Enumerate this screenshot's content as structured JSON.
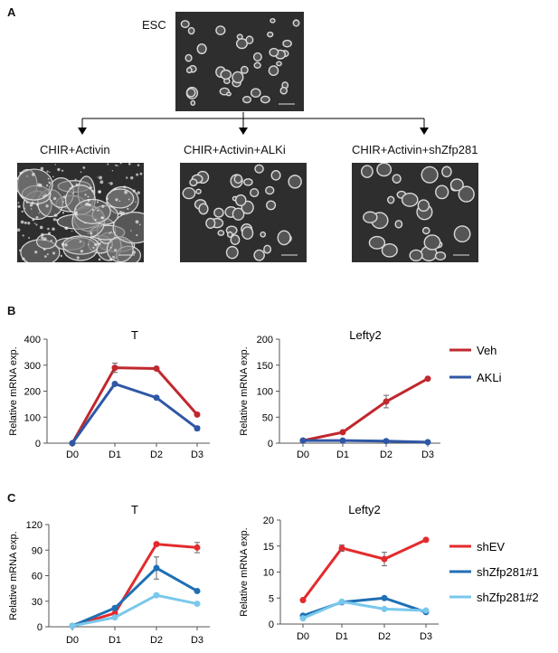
{
  "panels": {
    "a": "A",
    "b": "B",
    "c": "C"
  },
  "panel_a": {
    "top_label": "ESC",
    "conditions": [
      "CHIR+Activin",
      "CHIR+Activin+ALKi",
      "CHIR+Activin+shZfp281"
    ],
    "image_fill": "#2e2e2e",
    "colony_color": "#d9d9d9"
  },
  "chart_data": [
    {
      "type": "line",
      "title": "T",
      "ylabel": "Relative mRNA exp.",
      "categories": [
        "D0",
        "D1",
        "D2",
        "D3"
      ],
      "ylim": [
        0,
        400
      ],
      "yticks": [
        "0",
        "100",
        "200",
        "300",
        "400"
      ],
      "series": [
        {
          "name": "Veh",
          "color": "#c0282e",
          "values": [
            0,
            290,
            287,
            110
          ],
          "err": [
            0,
            18,
            0,
            0
          ]
        },
        {
          "name": "AKLi",
          "color": "#2f57a6",
          "values": [
            0,
            228,
            175,
            57
          ],
          "err": [
            0,
            0,
            0,
            8
          ]
        }
      ]
    },
    {
      "type": "line",
      "title": "Lefty2",
      "ylabel": "Relative mRNA exp.",
      "categories": [
        "D0",
        "D1",
        "D2",
        "D3"
      ],
      "ylim": [
        0,
        200
      ],
      "yticks": [
        "0",
        "50",
        "100",
        "150",
        "200"
      ],
      "series": [
        {
          "name": "Veh",
          "color": "#c0282e",
          "values": [
            5,
            21,
            80,
            124
          ],
          "err": [
            0,
            0,
            12,
            0
          ]
        },
        {
          "name": "AKLi",
          "color": "#2f57a6",
          "values": [
            5,
            5,
            4,
            2
          ],
          "err": [
            0,
            0,
            0,
            0
          ]
        }
      ]
    },
    {
      "type": "line",
      "title": "T",
      "ylabel": "Relative mRNA exp.",
      "categories": [
        "D0",
        "D1",
        "D2",
        "D3"
      ],
      "ylim": [
        0,
        120
      ],
      "yticks": [
        "0",
        "30",
        "60",
        "90",
        "120"
      ],
      "series": [
        {
          "name": "shEV",
          "color": "#e32b2d",
          "values": [
            1,
            16,
            97,
            93
          ],
          "err": [
            0,
            0,
            0,
            6
          ]
        },
        {
          "name": "shZfp281#1",
          "color": "#1f6fb4",
          "values": [
            1,
            22,
            69,
            42
          ],
          "err": [
            0,
            0,
            13,
            0
          ]
        },
        {
          "name": "shZfp281#2",
          "color": "#79c8ec",
          "values": [
            1,
            11,
            37,
            27
          ],
          "err": [
            0,
            0,
            0,
            0
          ]
        }
      ]
    },
    {
      "type": "line",
      "title": "Lefty2",
      "ylabel": "Relative mRNA exp.",
      "categories": [
        "D0",
        "D1",
        "D2",
        "D3"
      ],
      "ylim": [
        0,
        20
      ],
      "yticks": [
        "0",
        "5",
        "10",
        "15",
        "20"
      ],
      "series": [
        {
          "name": "shEV",
          "color": "#e32b2d",
          "values": [
            4.6,
            14.6,
            12.5,
            16.2
          ],
          "err": [
            0,
            0.6,
            1.3,
            0
          ]
        },
        {
          "name": "shZfp281#1",
          "color": "#1f6fb4",
          "values": [
            1.6,
            4.2,
            5.0,
            2.3
          ],
          "err": [
            0,
            0,
            0,
            0
          ]
        },
        {
          "name": "shZfp281#2",
          "color": "#79c8ec",
          "values": [
            1.1,
            4.3,
            2.9,
            2.6
          ],
          "err": [
            0,
            0,
            0,
            0
          ]
        }
      ]
    }
  ],
  "legend_b": [
    {
      "name": "Veh",
      "color": "#c0282e"
    },
    {
      "name": "AKLi",
      "color": "#2f57a6"
    }
  ],
  "legend_c": [
    {
      "name": "shEV",
      "color": "#e32b2d"
    },
    {
      "name": "shZfp281#1",
      "color": "#1f6fb4"
    },
    {
      "name": "shZfp281#2",
      "color": "#79c8ec"
    }
  ]
}
